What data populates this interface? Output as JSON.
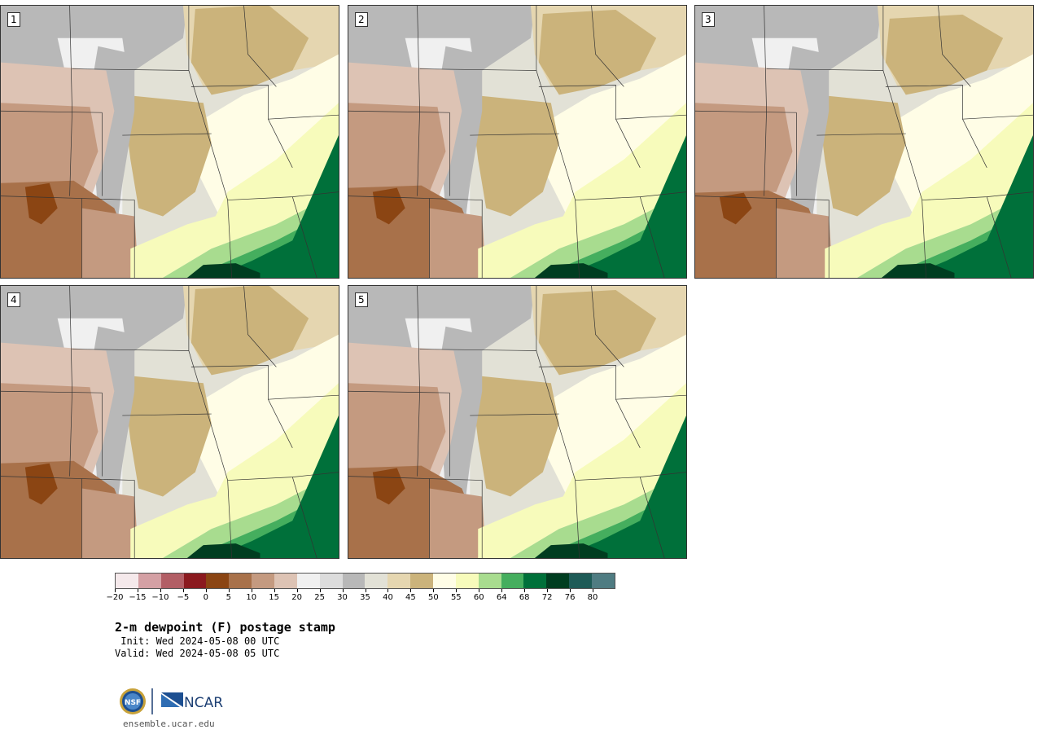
{
  "panels": [
    {
      "label": "1"
    },
    {
      "label": "2"
    },
    {
      "label": "3"
    },
    {
      "label": "4"
    },
    {
      "label": "5"
    }
  ],
  "colorbar": {
    "colors": [
      "#f5e9eb",
      "#d4a0a4",
      "#b25e65",
      "#8b1a1f",
      "#8b4513",
      "#a8714a",
      "#c49a80",
      "#ddc3b4",
      "#f0f0f0",
      "#dcdcdc",
      "#b8b8b8",
      "#e2e1d6",
      "#e5d6b0",
      "#cbb37b",
      "#fffde6",
      "#f7fbbb",
      "#a8dc8f",
      "#45ae5e",
      "#00703a",
      "#003d20",
      "#1e5b57",
      "#4f7c82"
    ],
    "ticks": [
      "−20",
      "−15",
      "−10",
      "−5",
      "0",
      "5",
      "10",
      "15",
      "20",
      "25",
      "30",
      "35",
      "40",
      "45",
      "50",
      "55",
      "60",
      "64",
      "68",
      "72",
      "76",
      "80"
    ]
  },
  "title": "2-m dewpoint (F) postage stamp",
  "init": " Init: Wed 2024-05-08 00 UTC",
  "valid": "Valid: Wed 2024-05-08 05 UTC",
  "logos": {
    "nsf": "NSF",
    "ncar": "NCAR"
  },
  "site": "ensemble.ucar.edu"
}
